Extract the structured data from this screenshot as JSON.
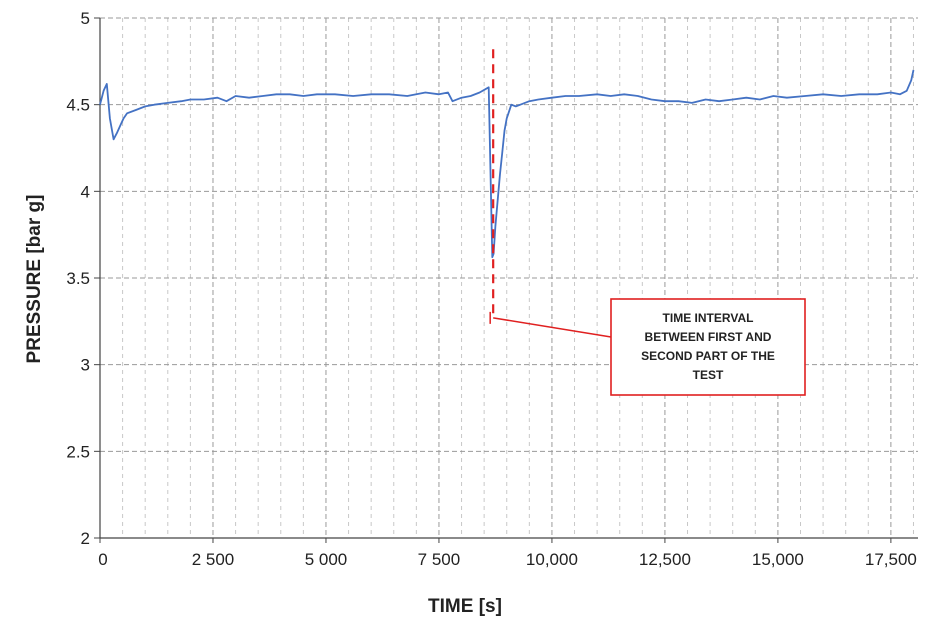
{
  "chart_data": {
    "type": "line",
    "title": "",
    "xlabel": "TIME [s]",
    "ylabel": "PRESSURE [bar g]",
    "xlim": [
      0,
      18100
    ],
    "ylim": [
      2,
      5
    ],
    "x_ticks": [
      0,
      2500,
      5000,
      7500,
      10000,
      12500,
      15000,
      17500
    ],
    "x_tick_labels": [
      "0",
      "2 500",
      "5 000",
      "7 500",
      "10,000",
      "12,500",
      "15,000",
      "17,500"
    ],
    "y_ticks": [
      2,
      2.5,
      3,
      3.5,
      4,
      4.5,
      5
    ],
    "y_tick_labels": [
      "2",
      "2.5",
      "3",
      "3.5",
      "4",
      "4.5",
      "5"
    ],
    "grid": true,
    "legend": "none",
    "series": [
      {
        "color": "#4472C4",
        "x": [
          0,
          80,
          150,
          220,
          300,
          380,
          450,
          520,
          600,
          800,
          1000,
          1200,
          1500,
          1800,
          2000,
          2300,
          2600,
          2800,
          3000,
          3300,
          3600,
          3900,
          4200,
          4500,
          4800,
          5200,
          5600,
          6000,
          6400,
          6800,
          7200,
          7500,
          7700,
          7800,
          8000,
          8200,
          8400,
          8600,
          8650,
          8680,
          8710,
          8750,
          8800,
          8850,
          8900,
          8950,
          9000,
          9100,
          9200,
          9300,
          9500,
          9700,
          10000,
          10300,
          10600,
          11000,
          11300,
          11600,
          11900,
          12200,
          12500,
          12800,
          13100,
          13400,
          13700,
          14000,
          14300,
          14600,
          14900,
          15200,
          15600,
          16000,
          16400,
          16800,
          17200,
          17500,
          17700,
          17850,
          17950,
          18000
        ],
        "y": [
          4.5,
          4.58,
          4.62,
          4.42,
          4.3,
          4.34,
          4.38,
          4.42,
          4.45,
          4.47,
          4.49,
          4.5,
          4.51,
          4.52,
          4.53,
          4.53,
          4.54,
          4.52,
          4.55,
          4.54,
          4.55,
          4.56,
          4.56,
          4.55,
          4.56,
          4.56,
          4.55,
          4.56,
          4.56,
          4.55,
          4.57,
          4.56,
          4.57,
          4.52,
          4.54,
          4.55,
          4.57,
          4.6,
          4.0,
          3.62,
          3.64,
          3.8,
          3.95,
          4.1,
          4.22,
          4.35,
          4.42,
          4.5,
          4.49,
          4.5,
          4.52,
          4.53,
          4.54,
          4.55,
          4.55,
          4.56,
          4.55,
          4.56,
          4.55,
          4.53,
          4.52,
          4.52,
          4.51,
          4.53,
          4.52,
          4.53,
          4.54,
          4.53,
          4.55,
          4.54,
          4.55,
          4.56,
          4.55,
          4.56,
          4.56,
          4.57,
          4.56,
          4.58,
          4.64,
          4.7
        ]
      }
    ],
    "annotations": [
      {
        "type": "vertical-dashed-line",
        "x": 8700,
        "y_range": [
          3.27,
          4.82
        ],
        "color": "#E02020"
      },
      {
        "type": "callout",
        "lines": [
          "TIME INTERVAL",
          "BETWEEN FIRST AND",
          "SECOND PART OF THE",
          "TEST"
        ],
        "anchor_x": 8700,
        "anchor_y": 3.27,
        "border_color": "#E02020"
      }
    ]
  }
}
